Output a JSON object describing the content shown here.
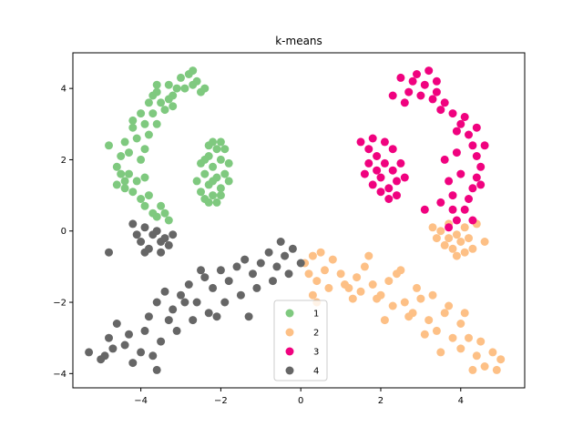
{
  "chart_data": {
    "type": "scatter",
    "title": "k-means",
    "xlabel": "",
    "ylabel": "",
    "xlim": [
      -5.7,
      5.6
    ],
    "ylim": [
      -4.4,
      5.0
    ],
    "x_ticks": [
      -4,
      -2,
      0,
      2,
      4
    ],
    "y_ticks": [
      -4,
      -2,
      0,
      2,
      4
    ],
    "tick_labels_x": [
      "−4",
      "−2",
      "0",
      "2",
      "4"
    ],
    "tick_labels_y": [
      "−4",
      "−2",
      "0",
      "2",
      "4"
    ],
    "grid": false,
    "legend_position": "bottom-center",
    "series": [
      {
        "name": "1",
        "color": "#7fc97f",
        "points": [
          [
            -4.6,
            1.8
          ],
          [
            -4.5,
            2.1
          ],
          [
            -4.4,
            2.5
          ],
          [
            -4.2,
            2.9
          ],
          [
            -4.0,
            3.3
          ],
          [
            -3.8,
            3.6
          ],
          [
            -3.6,
            3.9
          ],
          [
            -3.3,
            4.1
          ],
          [
            -3.0,
            4.3
          ],
          [
            -2.8,
            4.4
          ],
          [
            -2.6,
            4.2
          ],
          [
            -2.5,
            3.9
          ],
          [
            -4.3,
            1.6
          ],
          [
            -4.1,
            1.4
          ],
          [
            -4.2,
            1.1
          ],
          [
            -4.0,
            0.9
          ],
          [
            -3.9,
            0.7
          ],
          [
            -3.7,
            0.5
          ],
          [
            -3.6,
            0.4
          ],
          [
            -4.3,
            2.2
          ],
          [
            -4.1,
            2.6
          ],
          [
            -3.9,
            3.0
          ],
          [
            -3.7,
            3.3
          ],
          [
            -3.5,
            3.6
          ],
          [
            -3.2,
            3.8
          ],
          [
            -2.9,
            4.0
          ],
          [
            -3.4,
            3.4
          ],
          [
            -3.8,
            2.7
          ],
          [
            -4.0,
            2.0
          ],
          [
            -3.9,
            1.5
          ],
          [
            -3.8,
            1.0
          ],
          [
            -4.4,
            1.4
          ],
          [
            -4.5,
            1.6
          ],
          [
            -3.6,
            3.0
          ],
          [
            -3.3,
            3.7
          ],
          [
            -3.1,
            4.0
          ],
          [
            -2.7,
            4.1
          ],
          [
            -2.4,
            4.0
          ],
          [
            -3.5,
            0.7
          ],
          [
            -3.4,
            0.5
          ],
          [
            -4.8,
            2.4
          ],
          [
            -4.2,
            3.1
          ],
          [
            -3.6,
            4.1
          ],
          [
            -3.2,
            3.5
          ],
          [
            -3.7,
            3.8
          ],
          [
            -3.9,
            2.3
          ],
          [
            -4.4,
            1.2
          ],
          [
            -4.6,
            1.3
          ],
          [
            -3.3,
            0.3
          ],
          [
            -2.7,
            4.5
          ],
          [
            -2.2,
            2.5
          ],
          [
            -2.1,
            2.3
          ],
          [
            -2.3,
            2.1
          ],
          [
            -2.0,
            2.0
          ],
          [
            -2.2,
            1.8
          ],
          [
            -2.4,
            1.6
          ],
          [
            -2.1,
            1.5
          ],
          [
            -2.3,
            1.3
          ],
          [
            -2.0,
            1.2
          ],
          [
            -2.2,
            1.0
          ],
          [
            -2.4,
            0.9
          ],
          [
            -2.1,
            0.8
          ],
          [
            -1.9,
            1.6
          ],
          [
            -1.8,
            1.9
          ],
          [
            -2.5,
            1.9
          ],
          [
            -2.6,
            1.4
          ],
          [
            -1.9,
            2.3
          ],
          [
            -2.3,
            2.4
          ],
          [
            -2.0,
            1.0
          ],
          [
            -2.5,
            1.1
          ],
          [
            -1.8,
            1.4
          ],
          [
            -2.2,
            1.4
          ],
          [
            -2.4,
            2.0
          ],
          [
            -2.0,
            2.5
          ],
          [
            -2.3,
            0.8
          ]
        ]
      },
      {
        "name": "2",
        "color": "#fdc086",
        "points": [
          [
            0.1,
            -0.9
          ],
          [
            0.3,
            -0.7
          ],
          [
            0.5,
            -0.6
          ],
          [
            0.2,
            -1.2
          ],
          [
            0.4,
            -1.4
          ],
          [
            0.6,
            -1.1
          ],
          [
            0.8,
            -0.8
          ],
          [
            1.0,
            -1.2
          ],
          [
            1.2,
            -1.6
          ],
          [
            1.4,
            -1.3
          ],
          [
            1.6,
            -1.0
          ],
          [
            1.8,
            -1.5
          ],
          [
            2.0,
            -1.8
          ],
          [
            2.2,
            -1.4
          ],
          [
            2.4,
            -1.2
          ],
          [
            2.6,
            -2.0
          ],
          [
            2.8,
            -2.3
          ],
          [
            3.0,
            -1.9
          ],
          [
            3.2,
            -2.5
          ],
          [
            3.4,
            -2.8
          ],
          [
            3.6,
            -2.3
          ],
          [
            3.8,
            -3.0
          ],
          [
            4.0,
            -3.3
          ],
          [
            4.2,
            -3.0
          ],
          [
            4.4,
            -3.5
          ],
          [
            4.6,
            -3.8
          ],
          [
            4.8,
            -3.4
          ],
          [
            5.0,
            -3.6
          ],
          [
            4.3,
            -3.9
          ],
          [
            4.0,
            -2.6
          ],
          [
            3.5,
            -3.4
          ],
          [
            3.1,
            -2.9
          ],
          [
            2.7,
            -2.4
          ],
          [
            2.3,
            -2.1
          ],
          [
            1.9,
            -1.9
          ],
          [
            1.5,
            -1.7
          ],
          [
            1.1,
            -1.5
          ],
          [
            0.7,
            -1.6
          ],
          [
            0.4,
            -2.0
          ],
          [
            0.3,
            -1.8
          ],
          [
            1.7,
            -0.7
          ],
          [
            2.5,
            -1.1
          ],
          [
            2.9,
            -1.6
          ],
          [
            3.3,
            -1.8
          ],
          [
            3.7,
            -2.1
          ],
          [
            4.1,
            -2.3
          ],
          [
            4.5,
            -3.1
          ],
          [
            4.9,
            -3.9
          ],
          [
            1.3,
            -1.9
          ],
          [
            2.1,
            -2.5
          ],
          [
            3.5,
            0.0
          ],
          [
            3.7,
            -0.2
          ],
          [
            3.9,
            -0.1
          ],
          [
            4.1,
            0.1
          ],
          [
            3.6,
            -0.4
          ],
          [
            3.8,
            -0.5
          ],
          [
            4.0,
            -0.3
          ],
          [
            4.2,
            -0.2
          ],
          [
            3.4,
            -0.2
          ],
          [
            4.4,
            0.2
          ],
          [
            3.9,
            -0.7
          ],
          [
            4.1,
            -0.6
          ],
          [
            3.3,
            0.1
          ],
          [
            4.3,
            -0.5
          ],
          [
            3.7,
            0.2
          ],
          [
            4.6,
            -0.3
          ]
        ]
      },
      {
        "name": "3",
        "color": "#f0027f",
        "points": [
          [
            1.5,
            2.5
          ],
          [
            1.7,
            2.3
          ],
          [
            1.9,
            2.1
          ],
          [
            2.1,
            1.9
          ],
          [
            2.3,
            1.7
          ],
          [
            2.0,
            1.5
          ],
          [
            1.8,
            1.3
          ],
          [
            2.2,
            1.2
          ],
          [
            2.4,
            1.4
          ],
          [
            2.5,
            1.9
          ],
          [
            2.3,
            2.3
          ],
          [
            2.1,
            2.5
          ],
          [
            1.9,
            1.7
          ],
          [
            1.7,
            1.9
          ],
          [
            2.0,
            1.1
          ],
          [
            2.6,
            1.5
          ],
          [
            1.8,
            2.6
          ],
          [
            2.2,
            0.9
          ],
          [
            2.4,
            1.0
          ],
          [
            1.6,
            1.6
          ],
          [
            2.5,
            4.3
          ],
          [
            2.8,
            4.2
          ],
          [
            3.1,
            4.1
          ],
          [
            3.4,
            3.9
          ],
          [
            3.6,
            3.6
          ],
          [
            3.8,
            3.3
          ],
          [
            4.0,
            3.0
          ],
          [
            4.2,
            2.7
          ],
          [
            4.3,
            2.4
          ],
          [
            4.4,
            2.1
          ],
          [
            4.5,
            1.8
          ],
          [
            4.4,
            1.5
          ],
          [
            4.3,
            1.2
          ],
          [
            4.2,
            0.9
          ],
          [
            4.1,
            0.6
          ],
          [
            3.9,
            0.3
          ],
          [
            3.7,
            0.1
          ],
          [
            3.5,
            3.4
          ],
          [
            3.3,
            3.7
          ],
          [
            3.0,
            3.8
          ],
          [
            2.7,
            3.9
          ],
          [
            3.9,
            2.2
          ],
          [
            4.0,
            1.6
          ],
          [
            3.8,
            1.0
          ],
          [
            3.9,
            2.8
          ],
          [
            4.1,
            3.2
          ],
          [
            3.2,
            4.5
          ],
          [
            2.6,
            3.6
          ],
          [
            4.6,
            2.4
          ],
          [
            4.3,
            0.3
          ],
          [
            3.6,
            2.0
          ],
          [
            3.7,
            1.4
          ],
          [
            3.5,
            0.8
          ],
          [
            3.1,
            0.6
          ],
          [
            4.4,
            2.9
          ],
          [
            3.4,
            4.2
          ],
          [
            2.9,
            4.4
          ],
          [
            4.5,
            1.3
          ],
          [
            2.3,
            3.8
          ],
          [
            3.8,
            0.6
          ]
        ]
      },
      {
        "name": "4",
        "color": "#666666",
        "points": [
          [
            -5.3,
            -3.4
          ],
          [
            -5.0,
            -3.6
          ],
          [
            -4.8,
            -3.0
          ],
          [
            -4.6,
            -2.6
          ],
          [
            -4.4,
            -3.2
          ],
          [
            -4.2,
            -3.7
          ],
          [
            -4.0,
            -3.4
          ],
          [
            -3.9,
            -2.8
          ],
          [
            -3.8,
            -2.4
          ],
          [
            -3.6,
            -2.0
          ],
          [
            -3.4,
            -1.7
          ],
          [
            -3.2,
            -2.2
          ],
          [
            -3.0,
            -1.8
          ],
          [
            -2.8,
            -1.5
          ],
          [
            -2.6,
            -2.0
          ],
          [
            -2.4,
            -1.3
          ],
          [
            -2.2,
            -1.6
          ],
          [
            -2.0,
            -1.1
          ],
          [
            -1.8,
            -1.4
          ],
          [
            -1.6,
            -1.0
          ],
          [
            -1.4,
            -0.8
          ],
          [
            -1.2,
            -1.2
          ],
          [
            -1.0,
            -0.9
          ],
          [
            -0.8,
            -0.6
          ],
          [
            -0.6,
            -1.0
          ],
          [
            -0.4,
            -0.7
          ],
          [
            -0.2,
            -0.5
          ],
          [
            0.0,
            -0.9
          ],
          [
            -0.3,
            -1.2
          ],
          [
            -0.7,
            -1.4
          ],
          [
            -1.1,
            -1.6
          ],
          [
            -1.5,
            -1.8
          ],
          [
            -1.9,
            -2.0
          ],
          [
            -2.3,
            -2.3
          ],
          [
            -2.7,
            -2.5
          ],
          [
            -3.1,
            -2.8
          ],
          [
            -3.5,
            -3.1
          ],
          [
            -3.7,
            -3.5
          ],
          [
            -4.3,
            -2.9
          ],
          [
            -4.7,
            -3.3
          ],
          [
            -3.3,
            -2.5
          ],
          [
            -2.5,
            -1.1
          ],
          [
            -0.5,
            -0.3
          ],
          [
            -3.6,
            -3.9
          ],
          [
            -4.9,
            -3.5
          ],
          [
            -1.3,
            -2.4
          ],
          [
            -2.1,
            -2.4
          ],
          [
            -2.9,
            -2.0
          ],
          [
            -3.9,
            0.1
          ],
          [
            -3.7,
            -0.1
          ],
          [
            -3.5,
            -0.3
          ],
          [
            -3.8,
            -0.5
          ],
          [
            -4.0,
            -0.3
          ],
          [
            -3.6,
            0.0
          ],
          [
            -3.4,
            -0.2
          ],
          [
            -3.3,
            -0.4
          ],
          [
            -3.9,
            -0.6
          ],
          [
            -4.2,
            0.2
          ],
          [
            -3.5,
            -0.6
          ],
          [
            -4.1,
            -0.1
          ],
          [
            -4.8,
            -0.6
          ],
          [
            -3.2,
            -0.1
          ]
        ]
      }
    ]
  }
}
